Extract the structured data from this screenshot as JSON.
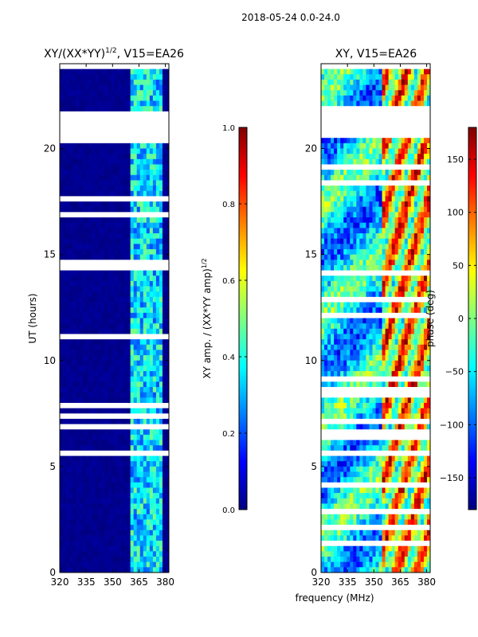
{
  "suptitle": "2018-05-24 0.0-24.0",
  "xlabel_shared": "frequency (MHz)",
  "chart_data": [
    {
      "type": "heatmap",
      "title": "XY/(XX*YY)",
      "title_sup": "1/2",
      "title_suffix": ", V15=EA26",
      "ylabel": "UT (hours)",
      "xlim": [
        320,
        382
      ],
      "ylim": [
        0,
        24
      ],
      "xticks": [
        "320",
        "335",
        "350",
        "365",
        "380"
      ],
      "xtick_values": [
        320,
        335,
        350,
        365,
        380
      ],
      "yticks": [
        "0",
        "5",
        "10",
        "15",
        "20"
      ],
      "ytick_values": [
        0,
        5,
        10,
        15,
        20
      ],
      "data_gap_hours": [
        21.8,
        20.4
      ],
      "colorbar": {
        "label": "XY amp. / (XX*YY amp)",
        "label_sup": "1/2",
        "range": [
          0.0,
          1.0
        ],
        "ticks": [
          "0.0",
          "0.2",
          "0.4",
          "0.6",
          "0.8",
          "1.0"
        ],
        "tick_values": [
          0.0,
          0.2,
          0.4,
          0.6,
          0.8,
          1.0
        ],
        "colormap": "jet"
      }
    },
    {
      "type": "heatmap",
      "title": "XY, V15=EA26",
      "xlim": [
        320,
        382
      ],
      "ylim": [
        0,
        24
      ],
      "xticks": [
        "320",
        "335",
        "350",
        "365",
        "380"
      ],
      "xtick_values": [
        320,
        335,
        350,
        365,
        380
      ],
      "yticks": [
        "0",
        "5",
        "10",
        "15",
        "20"
      ],
      "ytick_values": [
        0,
        5,
        10,
        15,
        20
      ],
      "data_gap_hours": [
        21.8,
        20.4
      ],
      "colorbar": {
        "label": "phase (deg)",
        "range": [
          -180,
          180
        ],
        "ticks": [
          "−150",
          "−100",
          "−50",
          "0",
          "50",
          "100",
          "150"
        ],
        "tick_values": [
          -150,
          -100,
          -50,
          0,
          50,
          100,
          150
        ],
        "colormap": "jet"
      }
    }
  ],
  "colors": {
    "jet_low": "#00008f",
    "jet_high": "#800000",
    "gap": "#ffffff"
  }
}
